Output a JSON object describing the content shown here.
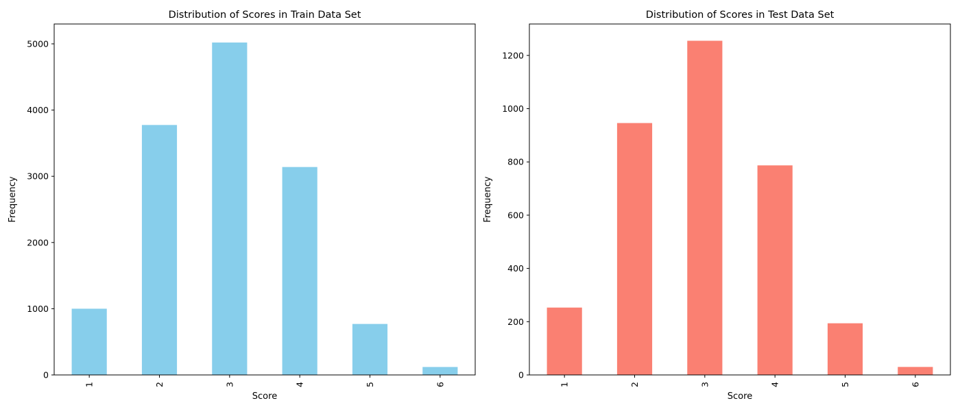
{
  "chart_data": [
    {
      "type": "bar",
      "title": "Distribution of Scores in Train Data Set",
      "xlabel": "Score",
      "ylabel": "Frequency",
      "categories": [
        "1",
        "2",
        "3",
        "4",
        "5",
        "6"
      ],
      "values": [
        1000,
        3775,
        5020,
        3140,
        770,
        120
      ],
      "ylim": [
        0,
        5300
      ],
      "yticks": [
        "0",
        "1000",
        "2000",
        "3000",
        "4000",
        "5000"
      ],
      "color": "#87ceeb",
      "grid": false,
      "legend": "none"
    },
    {
      "type": "bar",
      "title": "Distribution of Scores in Test Data Set",
      "xlabel": "Score",
      "ylabel": "Frequency",
      "categories": [
        "1",
        "2",
        "3",
        "4",
        "5",
        "6"
      ],
      "values": [
        253,
        946,
        1255,
        787,
        194,
        30
      ],
      "ylim": [
        0,
        1318
      ],
      "yticks": [
        "0",
        "200",
        "400",
        "600",
        "800",
        "1000",
        "1200"
      ],
      "color": "#fa8072",
      "grid": false,
      "legend": "none"
    }
  ]
}
